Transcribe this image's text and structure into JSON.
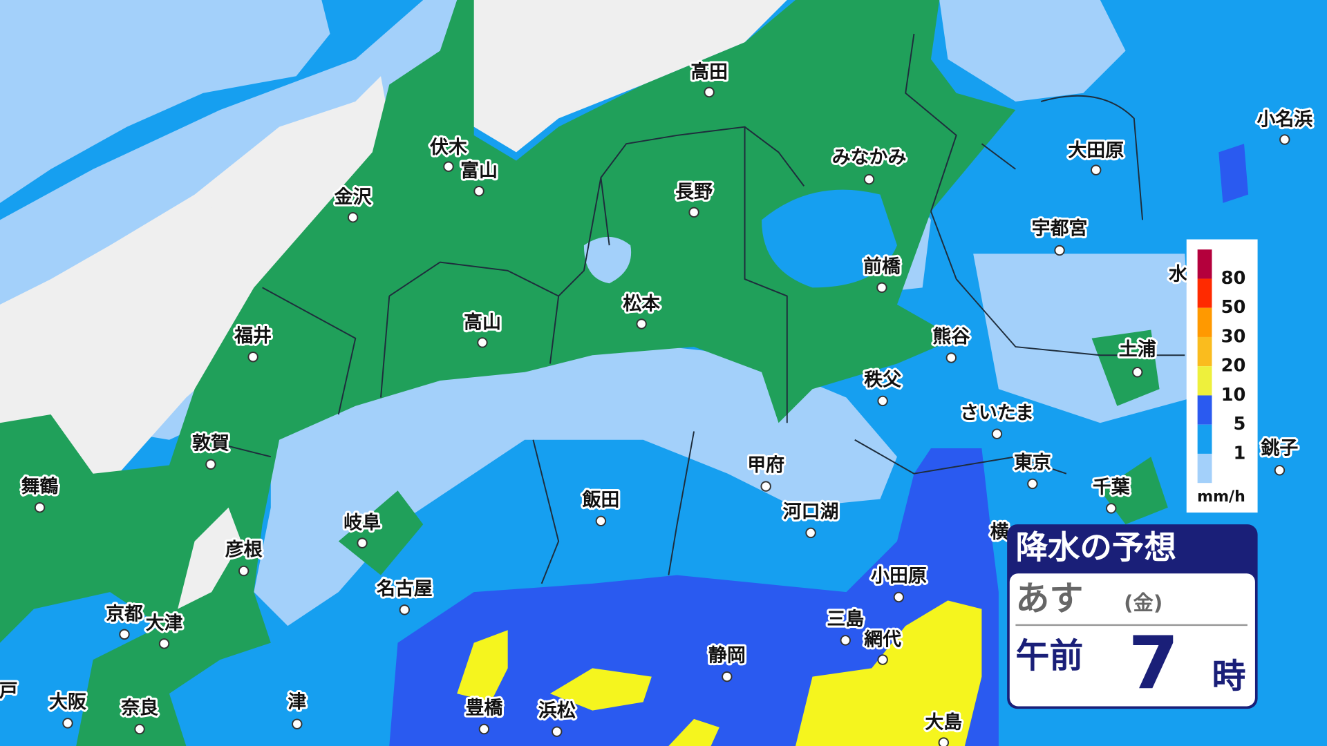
{
  "map": {
    "cities": [
      "高田",
      "伏木",
      "富山",
      "金沢",
      "長野",
      "みなかみ",
      "大田原",
      "小名浜",
      "宇都宮",
      "前橋",
      "松本",
      "高山",
      "福井",
      "熊谷",
      "土浦",
      "秩父",
      "さいたま",
      "敦賀",
      "甲府",
      "東京",
      "銚子",
      "舞鶴",
      "千葉",
      "飯田",
      "河口湖",
      "岐阜",
      "彦根",
      "名古屋",
      "小田原",
      "京都",
      "大津",
      "三島",
      "網代",
      "静岡",
      "津",
      "大阪",
      "奈良",
      "豊橋",
      "浜松",
      "大島",
      "横",
      "戸",
      "水"
    ],
    "legend": {
      "labels": [
        80,
        50,
        30,
        20,
        10,
        5,
        1
      ],
      "unit": "mm/h",
      "colors": [
        "#b4003c",
        "#ff2a00",
        "#ff9900",
        "#fabc1e",
        "#eef03c",
        "#2a5af0",
        "#169ff0",
        "#a3d0fa"
      ]
    },
    "panel": {
      "title": "降水の予想",
      "day": "あす",
      "weekday": "(金)",
      "period": "午前",
      "hour": "7",
      "hour_unit": "時"
    }
  }
}
